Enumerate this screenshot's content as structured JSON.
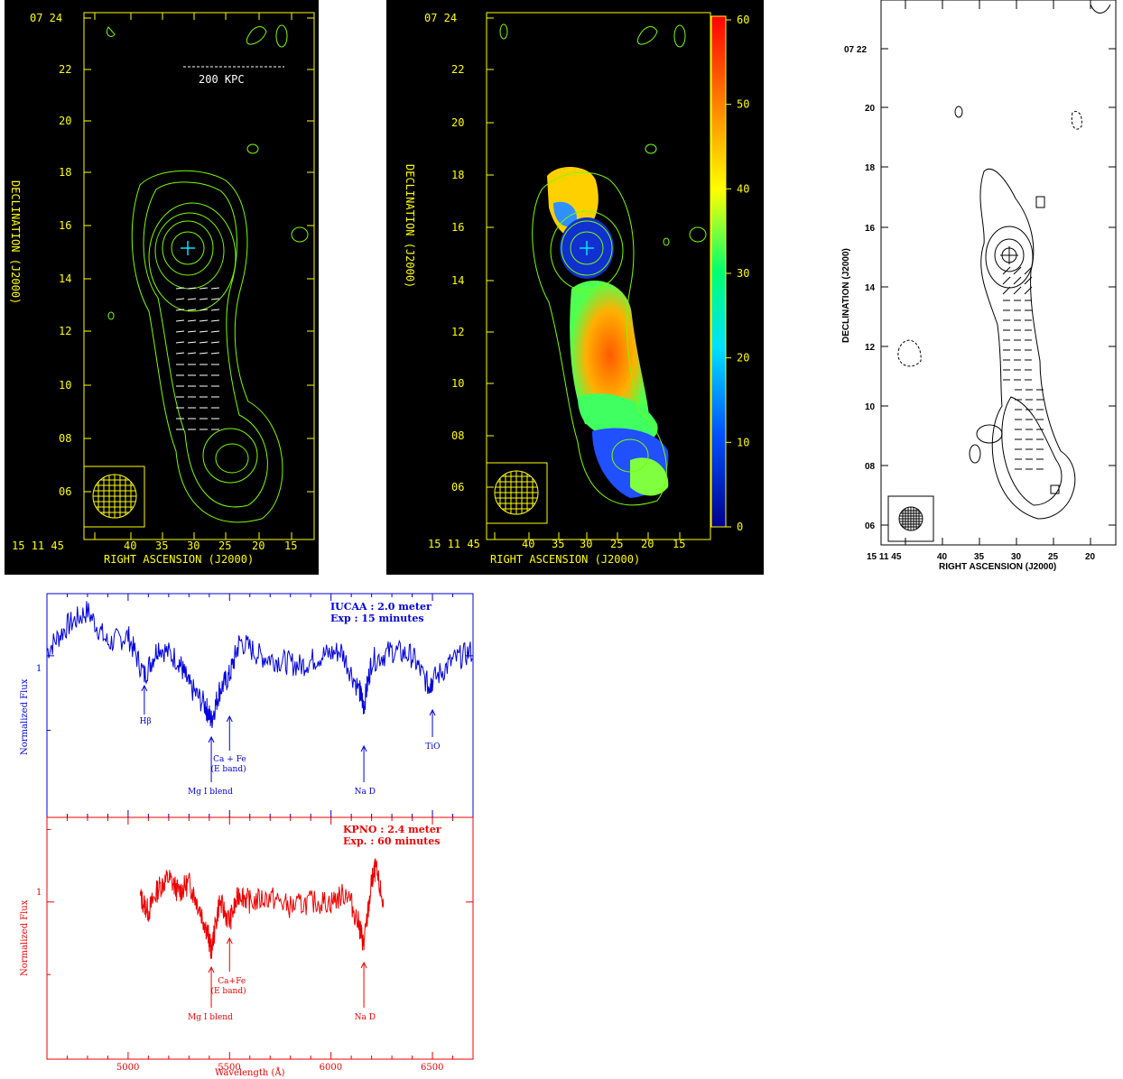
{
  "colors": {
    "yellow_axes": "#ffff00",
    "green_contours": "#7CFC00",
    "cyan_marker": "#00e5ff",
    "blue_spectrum": "#0000dd",
    "red_spectrum": "#ee0000",
    "black": "#000000"
  },
  "radio_maps": {
    "dec_axis_label": "DECLINATION (J2000)",
    "ra_axis_label": "RIGHT ASCENSION (J2000)",
    "dec_ticks": [
      "07 24",
      "22",
      "20",
      "18",
      "16",
      "14",
      "12",
      "10",
      "08",
      "06"
    ],
    "ra_ticks": [
      "15 11 45",
      "40",
      "35",
      "30",
      "25",
      "20",
      "15"
    ],
    "scale_bar": "200 KPC",
    "colorbar_ticks": [
      "60",
      "50",
      "40",
      "30",
      "20",
      "10",
      "0"
    ],
    "bw_dec_ticks": [
      "07 22",
      "20",
      "18",
      "16",
      "14",
      "12",
      "10",
      "08",
      "06"
    ],
    "bw_ra_ticks": [
      "15 11 45",
      "40",
      "35",
      "30",
      "25",
      "20"
    ],
    "bw_dec_label": "DECLINATION (J2000)",
    "bw_ra_label": "RIGHT ASCENSION (J2000)"
  },
  "chart_data": [
    {
      "type": "line",
      "panel": "top spectrum",
      "xlabel": "",
      "ylabel": "Normalized Flux",
      "xlim": [
        4600,
        6700
      ],
      "ytick_labels": [
        "1"
      ],
      "annotation_lines": [
        "IUCAA : 2.0 meter",
        "Exp : 15 minutes"
      ],
      "series": [
        {
          "x": [
            4600,
            4700,
            4800,
            4900,
            5000,
            5080,
            5150,
            5250,
            5300,
            5380,
            5410,
            5450,
            5500,
            5550,
            5650,
            5750,
            5850,
            5950,
            6050,
            6140,
            6162,
            6200,
            6300,
            6400,
            6480,
            6500,
            6600,
            6700
          ],
          "y": [
            1.02,
            1.12,
            1.18,
            1.05,
            1.08,
            0.92,
            1.04,
            0.98,
            0.88,
            0.8,
            0.74,
            0.86,
            0.92,
            1.06,
            1.0,
            0.98,
            0.96,
            1.0,
            1.02,
            0.86,
            0.8,
            0.98,
            1.02,
            1.0,
            0.88,
            0.9,
            0.98,
            1.02
          ]
        }
      ],
      "line_labels": [
        {
          "text": "Hβ",
          "x": 5080
        },
        {
          "text": "Mg I blend",
          "x": 5410
        },
        {
          "text": "Ca + Fe",
          "x": 5500
        },
        {
          "text": "(E band)",
          "x": 5500
        },
        {
          "text": "Na D",
          "x": 6162
        },
        {
          "text": "TiO",
          "x": 6500
        }
      ]
    },
    {
      "type": "line",
      "panel": "bottom spectrum",
      "xlabel": "Wavelength (Å)",
      "ylabel": "Normalized Flux",
      "xlim": [
        4600,
        6700
      ],
      "xtick_labels": [
        "5000",
        "5500",
        "6000",
        "6500"
      ],
      "xticks": [
        5000,
        5500,
        6000,
        6500
      ],
      "ytick_labels": [
        "1"
      ],
      "annotation_lines": [
        "KPNO : 2.4 meter",
        "Exp. : 60 minutes"
      ],
      "series": [
        {
          "x": [
            5060,
            5100,
            5150,
            5200,
            5250,
            5300,
            5350,
            5390,
            5410,
            5450,
            5500,
            5550,
            5600,
            5700,
            5800,
            5900,
            6000,
            6080,
            6140,
            6162,
            6200,
            6220,
            6260
          ],
          "y": [
            1.02,
            0.96,
            1.06,
            1.1,
            1.04,
            1.08,
            0.98,
            0.88,
            0.8,
            1.0,
            0.92,
            1.04,
            1.0,
            1.02,
            0.98,
            1.0,
            1.0,
            1.04,
            0.9,
            0.82,
            1.08,
            1.14,
            0.98
          ]
        }
      ],
      "line_labels": [
        {
          "text": "Mg I blend",
          "x": 5410
        },
        {
          "text": "Ca+Fe",
          "x": 5500
        },
        {
          "text": "(E band)",
          "x": 5500
        },
        {
          "text": "Na D",
          "x": 6162
        }
      ]
    }
  ]
}
